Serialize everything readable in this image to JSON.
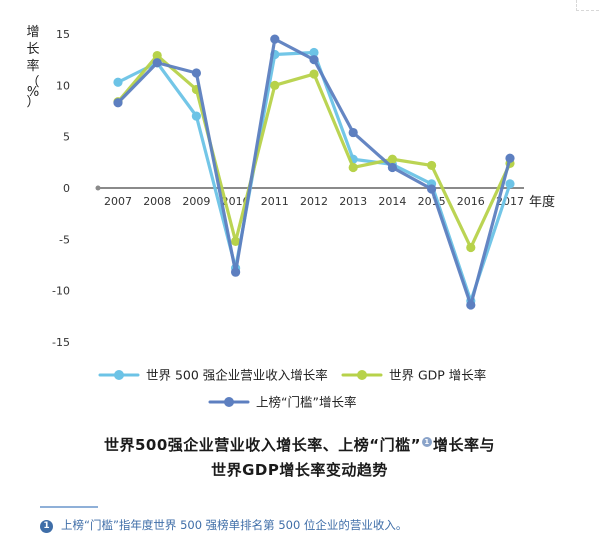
{
  "chart_data": {
    "type": "line",
    "title": "",
    "ylabel": "增长率（%）",
    "ylabel_chars": [
      "增",
      "长",
      "率",
      "（",
      "%",
      "）"
    ],
    "xlabel": "年度",
    "x": [
      2007,
      2008,
      2009,
      2010,
      2011,
      2012,
      2013,
      2014,
      2015,
      2016,
      2017
    ],
    "x_labels": [
      "2007",
      "2008",
      "2009",
      "2010",
      "2011",
      "2012",
      "2013",
      "2014",
      "2015",
      "2016",
      "2017"
    ],
    "yticks": [
      15,
      10,
      5,
      0,
      -5,
      -10,
      -15
    ],
    "ylim": [
      -15,
      15
    ],
    "grid": false,
    "legend_placement": "bottom",
    "series": [
      {
        "name": "世界 500 强企业营业收入增长率",
        "color": "#6cc3e6",
        "values": [
          10.3,
          12.2,
          7.0,
          -7.8,
          13.0,
          13.2,
          2.8,
          2.3,
          0.4,
          -11.0,
          0.4
        ]
      },
      {
        "name": "世界 GDP 增长率",
        "color": "#b7d24a",
        "values": [
          8.4,
          12.9,
          9.6,
          -5.2,
          10.0,
          11.1,
          2.0,
          2.8,
          2.2,
          -5.8,
          2.4
        ]
      },
      {
        "name": "上榜“门槛”增长率",
        "color": "#5d7fc0",
        "values": [
          8.3,
          12.2,
          11.2,
          -8.2,
          14.5,
          12.5,
          5.4,
          2.0,
          -0.1,
          -11.4,
          2.9
        ]
      }
    ]
  },
  "caption": {
    "line1_before": "世界500强企业营业收入增长率、上榜“门槛”",
    "line1_badge": "1",
    "line1_after": "增长率与",
    "line2": "世界GDP增长率变动趋势"
  },
  "footnote": {
    "badge": "1",
    "text": "上榜“门槛”指年度世界 500 强榜单排名第 500 位企业的营业收入。"
  }
}
